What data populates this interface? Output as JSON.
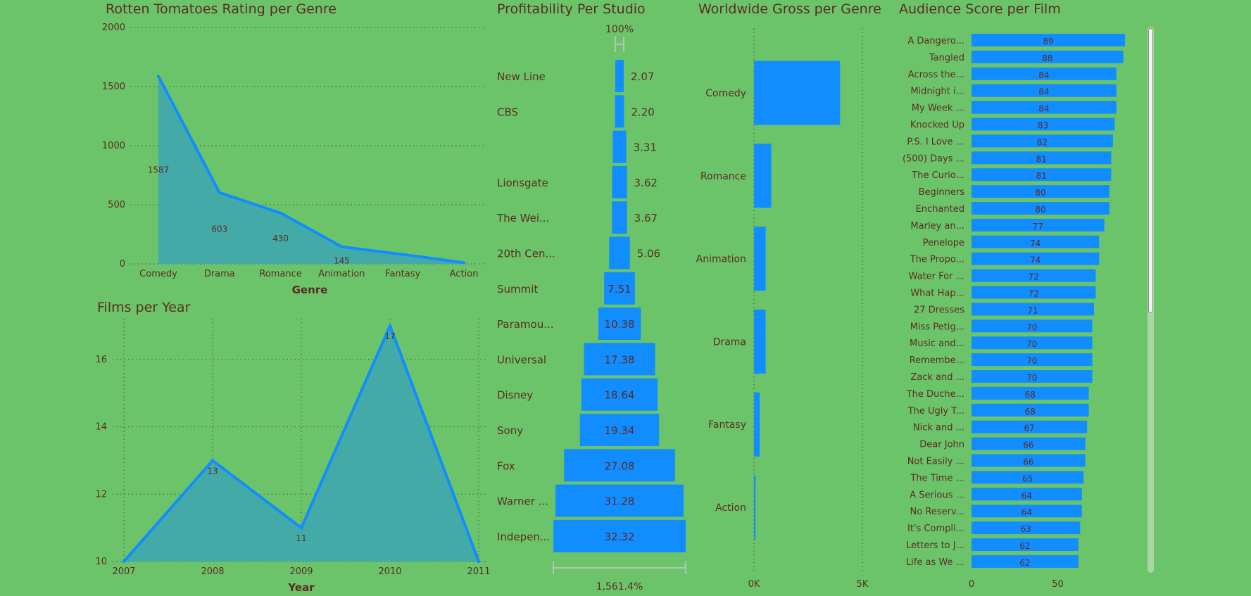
{
  "chart_data": [
    {
      "type": "area",
      "title": "Rotten Tomatoes Rating per Genre",
      "xlabel": "Genre",
      "ylabel": "",
      "categories": [
        "Comedy",
        "Drama",
        "Romance",
        "Animation",
        "Fantasy",
        "Action"
      ],
      "values": [
        1587,
        603,
        430,
        145,
        80,
        10
      ],
      "data_labels": [
        "1587",
        "603",
        "430",
        "145",
        "",
        ""
      ],
      "ylim": [
        0,
        2000
      ],
      "yticks": [
        "0",
        "500",
        "1000",
        "1500",
        "2000"
      ],
      "grid": true
    },
    {
      "type": "area",
      "title": "Films per Year",
      "xlabel": "Year",
      "ylabel": "",
      "categories": [
        "2007",
        "2008",
        "2009",
        "2010",
        "2011"
      ],
      "values": [
        10,
        13,
        11,
        17,
        10
      ],
      "data_labels": [
        "",
        "13",
        "11",
        "17",
        ""
      ],
      "ylim": [
        10,
        17
      ],
      "yticks": [
        "10",
        "12",
        "14",
        "16"
      ],
      "grid": true
    },
    {
      "type": "bar",
      "subtype": "funnel",
      "title": "Profitability Per Studio",
      "categories": [
        "New Line",
        "CBS",
        "",
        "Lionsgate",
        "The Wei...",
        "20th Cen...",
        "Summit",
        "Paramou...",
        "Universal",
        "Disney",
        "Sony",
        "Fox",
        "Warner ...",
        "Indepen..."
      ],
      "values": [
        2.07,
        2.2,
        3.31,
        3.62,
        3.67,
        5.06,
        7.51,
        10.38,
        17.38,
        18.64,
        19.34,
        27.08,
        31.28,
        32.32
      ],
      "value_labels": [
        "2.07",
        "2.20",
        "3.31",
        "3.62",
        "3.67",
        "5.06",
        "7.51",
        "10.38",
        "17.38",
        "18.64",
        "19.34",
        "27.08",
        "31.28",
        "32.32"
      ],
      "top_label": "100%",
      "bottom_label": "1,561.4%"
    },
    {
      "type": "bar",
      "orientation": "horizontal",
      "title": "Worldwide Gross per Genre",
      "categories": [
        "Comedy",
        "Romance",
        "Animation",
        "Drama",
        "Fantasy",
        "Action"
      ],
      "values": [
        3970,
        800,
        540,
        540,
        270,
        70
      ],
      "xlim": [
        0,
        5000
      ],
      "xticks": [
        "0K",
        "5K"
      ]
    },
    {
      "type": "bar",
      "orientation": "horizontal",
      "title": "Audience Score per Film",
      "categories": [
        "A Dangero...",
        "Tangled",
        "Across the...",
        "Midnight i...",
        "My Week ...",
        "Knocked Up",
        "P.S. I Love ...",
        "(500) Days ...",
        "The Curio...",
        "Beginners",
        "Enchanted",
        "Marley an...",
        "Penelope",
        "The Propo...",
        "Water For ...",
        "What Hap...",
        "27 Dresses",
        "Miss Petig...",
        "Music and...",
        "Remembe...",
        "Zack and ...",
        "The Duche...",
        "The Ugly T...",
        "Nick and ...",
        "Dear John",
        "Not Easily ...",
        "The Time ...",
        "A Serious ...",
        "No Reserv...",
        "It's Compli...",
        "Letters to J...",
        "Life as We ..."
      ],
      "values": [
        89,
        88,
        84,
        84,
        84,
        83,
        82,
        81,
        81,
        80,
        80,
        77,
        74,
        74,
        72,
        72,
        71,
        70,
        70,
        70,
        70,
        68,
        68,
        67,
        66,
        66,
        65,
        64,
        64,
        63,
        62,
        62
      ],
      "value_labels": [
        "89",
        "88",
        "84",
        "84",
        "84",
        "83",
        "82",
        "81",
        "81",
        "80",
        "80",
        "77",
        "74",
        "74",
        "72",
        "72",
        "71",
        "70",
        "70",
        "70",
        "70",
        "68",
        "68",
        "67",
        "66",
        "66",
        "65",
        "64",
        "64",
        "63",
        "62",
        "62"
      ],
      "xlim": [
        0,
        100
      ],
      "xticks": [
        "0",
        "50"
      ]
    }
  ],
  "colors": {
    "background": "#6cc46a",
    "bar": "#118dff",
    "area_fill": "#44aaa8",
    "line": "#118dff",
    "text": "#5a2c24",
    "grid": "#4d4d4d"
  }
}
